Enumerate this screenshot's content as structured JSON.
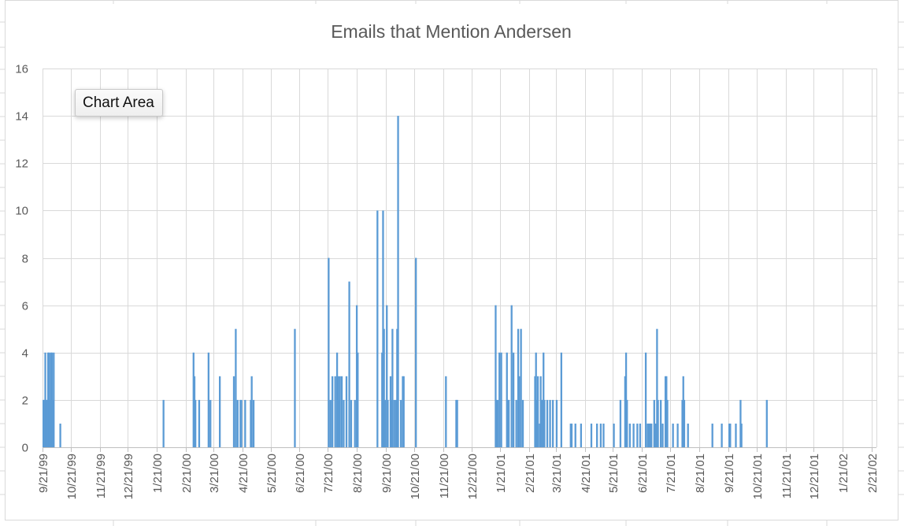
{
  "tooltip": "Chart Area",
  "chart_data": {
    "type": "bar",
    "title": "Emails that Mention Andersen",
    "xlabel": "",
    "ylabel": "",
    "ylim": [
      0,
      16
    ],
    "yticks": [
      0,
      2,
      4,
      6,
      8,
      10,
      12,
      14,
      16
    ],
    "grid": true,
    "legend": "none",
    "bar_color": "#5b9bd5",
    "x_tick_labels": [
      "9/21/99",
      "10/21/99",
      "11/21/99",
      "12/21/99",
      "1/21/00",
      "2/21/00",
      "3/21/00",
      "4/21/00",
      "5/21/00",
      "6/21/00",
      "7/21/00",
      "8/21/00",
      "9/21/00",
      "10/21/00",
      "11/21/00",
      "12/21/00",
      "1/21/01",
      "2/21/01",
      "3/21/01",
      "4/21/01",
      "5/21/01",
      "6/21/01",
      "7/21/01",
      "8/21/01",
      "9/21/01",
      "10/21/01",
      "11/21/01",
      "12/21/01",
      "1/21/02",
      "2/21/02"
    ],
    "series": [
      {
        "points": [
          [
            "1999-09-21",
            2
          ],
          [
            "1999-09-22",
            2
          ],
          [
            "1999-09-23",
            4
          ],
          [
            "1999-09-24",
            2
          ],
          [
            "1999-09-25",
            2
          ],
          [
            "1999-09-26",
            4
          ],
          [
            "1999-09-27",
            4
          ],
          [
            "1999-09-28",
            2
          ],
          [
            "1999-09-29",
            4
          ],
          [
            "1999-09-30",
            4
          ],
          [
            "1999-10-01",
            2
          ],
          [
            "1999-10-02",
            4
          ],
          [
            "1999-10-09",
            1
          ],
          [
            "2000-01-27",
            2
          ],
          [
            "2000-02-28",
            4
          ],
          [
            "2000-02-29",
            3
          ],
          [
            "2000-03-01",
            2
          ],
          [
            "2000-03-05",
            2
          ],
          [
            "2000-03-15",
            4
          ],
          [
            "2000-03-17",
            2
          ],
          [
            "2000-03-27",
            3
          ],
          [
            "2000-04-11",
            3
          ],
          [
            "2000-04-13",
            5
          ],
          [
            "2000-04-15",
            2
          ],
          [
            "2000-04-18",
            2
          ],
          [
            "2000-04-19",
            2
          ],
          [
            "2000-04-23",
            2
          ],
          [
            "2000-04-29",
            2
          ],
          [
            "2000-04-30",
            3
          ],
          [
            "2000-05-02",
            2
          ],
          [
            "2000-06-15",
            5
          ],
          [
            "2000-07-21",
            8
          ],
          [
            "2000-07-23",
            2
          ],
          [
            "2000-07-25",
            3
          ],
          [
            "2000-07-28",
            3
          ],
          [
            "2000-07-30",
            4
          ],
          [
            "2000-07-31",
            3
          ],
          [
            "2000-08-01",
            2
          ],
          [
            "2000-08-02",
            3
          ],
          [
            "2000-08-04",
            3
          ],
          [
            "2000-08-06",
            2
          ],
          [
            "2000-08-09",
            3
          ],
          [
            "2000-08-12",
            7
          ],
          [
            "2000-08-14",
            2
          ],
          [
            "2000-08-18",
            2
          ],
          [
            "2000-08-20",
            6
          ],
          [
            "2000-08-21",
            4
          ],
          [
            "2000-09-11",
            10
          ],
          [
            "2000-09-16",
            4
          ],
          [
            "2000-09-17",
            10
          ],
          [
            "2000-09-18",
            5
          ],
          [
            "2000-09-19",
            2
          ],
          [
            "2000-09-21",
            6
          ],
          [
            "2000-09-22",
            2
          ],
          [
            "2000-09-25",
            3
          ],
          [
            "2000-09-26",
            2
          ],
          [
            "2000-09-27",
            5
          ],
          [
            "2000-09-29",
            2
          ],
          [
            "2000-10-01",
            2
          ],
          [
            "2000-10-02",
            5
          ],
          [
            "2000-10-03",
            14
          ],
          [
            "2000-10-06",
            2
          ],
          [
            "2000-10-08",
            3
          ],
          [
            "2000-10-09",
            3
          ],
          [
            "2000-10-22",
            8
          ],
          [
            "2000-11-23",
            3
          ],
          [
            "2000-12-04",
            2
          ],
          [
            "2000-12-05",
            2
          ],
          [
            "2001-01-15",
            6
          ],
          [
            "2001-01-16",
            2
          ],
          [
            "2001-01-17",
            2
          ],
          [
            "2001-01-19",
            4
          ],
          [
            "2001-01-21",
            4
          ],
          [
            "2001-01-27",
            4
          ],
          [
            "2001-01-28",
            2
          ],
          [
            "2001-01-29",
            2
          ],
          [
            "2001-02-01",
            6
          ],
          [
            "2001-02-03",
            4
          ],
          [
            "2001-02-06",
            2
          ],
          [
            "2001-02-08",
            5
          ],
          [
            "2001-02-09",
            3
          ],
          [
            "2001-02-11",
            5
          ],
          [
            "2001-02-13",
            2
          ],
          [
            "2001-02-26",
            3
          ],
          [
            "2001-02-27",
            4
          ],
          [
            "2001-02-28",
            2
          ],
          [
            "2001-03-01",
            3
          ],
          [
            "2001-03-03",
            1
          ],
          [
            "2001-03-04",
            3
          ],
          [
            "2001-03-05",
            2
          ],
          [
            "2001-03-06",
            2
          ],
          [
            "2001-03-07",
            4
          ],
          [
            "2001-03-08",
            2
          ],
          [
            "2001-03-11",
            2
          ],
          [
            "2001-03-14",
            2
          ],
          [
            "2001-03-17",
            2
          ],
          [
            "2001-03-21",
            2
          ],
          [
            "2001-03-26",
            4
          ],
          [
            "2001-04-05",
            1
          ],
          [
            "2001-04-06",
            1
          ],
          [
            "2001-04-10",
            1
          ],
          [
            "2001-04-16",
            1
          ],
          [
            "2001-04-27",
            1
          ],
          [
            "2001-05-03",
            1
          ],
          [
            "2001-05-07",
            1
          ],
          [
            "2001-05-10",
            1
          ],
          [
            "2001-05-21",
            1
          ],
          [
            "2001-05-28",
            2
          ],
          [
            "2001-06-02",
            3
          ],
          [
            "2001-06-03",
            4
          ],
          [
            "2001-06-04",
            2
          ],
          [
            "2001-06-07",
            1
          ],
          [
            "2001-06-11",
            1
          ],
          [
            "2001-06-15",
            1
          ],
          [
            "2001-06-18",
            1
          ],
          [
            "2001-06-24",
            4
          ],
          [
            "2001-06-26",
            1
          ],
          [
            "2001-06-27",
            1
          ],
          [
            "2001-06-28",
            1
          ],
          [
            "2001-06-29",
            1
          ],
          [
            "2001-06-30",
            1
          ],
          [
            "2001-07-03",
            2
          ],
          [
            "2001-07-04",
            1
          ],
          [
            "2001-07-05",
            1
          ],
          [
            "2001-07-06",
            5
          ],
          [
            "2001-07-07",
            2
          ],
          [
            "2001-07-10",
            2
          ],
          [
            "2001-07-12",
            1
          ],
          [
            "2001-07-15",
            3
          ],
          [
            "2001-07-16",
            3
          ],
          [
            "2001-07-17",
            2
          ],
          [
            "2001-07-23",
            1
          ],
          [
            "2001-07-28",
            1
          ],
          [
            "2001-08-02",
            2
          ],
          [
            "2001-08-03",
            3
          ],
          [
            "2001-08-04",
            2
          ],
          [
            "2001-08-08",
            1
          ],
          [
            "2001-09-03",
            1
          ],
          [
            "2001-09-13",
            1
          ],
          [
            "2001-09-21",
            1
          ],
          [
            "2001-09-22",
            1
          ],
          [
            "2001-09-28",
            1
          ],
          [
            "2001-10-03",
            2
          ],
          [
            "2001-10-04",
            1
          ],
          [
            "2001-10-31",
            2
          ]
        ]
      }
    ]
  }
}
